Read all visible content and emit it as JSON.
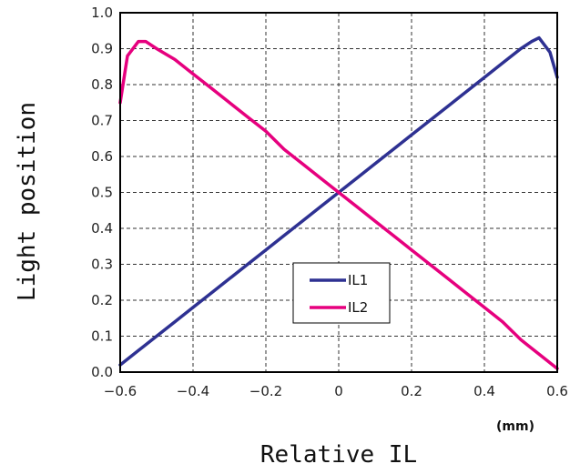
{
  "chart_data": {
    "type": "line",
    "title": "",
    "xlabel": "Relative IL",
    "ylabel": "Light position",
    "x_unit": "(mm)",
    "xlim": [
      -0.6,
      0.6
    ],
    "ylim": [
      0.0,
      1.0
    ],
    "x_ticks": [
      "-0.6",
      "-0.4",
      "-0.2",
      "0",
      "0.2",
      "0.4",
      "0.6"
    ],
    "y_ticks": [
      "0.0",
      "0.1",
      "0.2",
      "0.3",
      "0.4",
      "0.5",
      "0.6",
      "0.7",
      "0.8",
      "0.9",
      "1.0"
    ],
    "grid": "dashed",
    "legend_position": "lower-center",
    "series": [
      {
        "name": "IL1",
        "color": "#2e3192",
        "x": [
          -0.6,
          -0.55,
          -0.5,
          -0.45,
          -0.4,
          -0.35,
          -0.3,
          -0.25,
          -0.2,
          -0.15,
          -0.1,
          -0.05,
          0.0,
          0.05,
          0.1,
          0.15,
          0.2,
          0.25,
          0.3,
          0.35,
          0.4,
          0.45,
          0.5,
          0.53,
          0.55,
          0.58,
          0.6
        ],
        "y": [
          0.02,
          0.06,
          0.1,
          0.14,
          0.18,
          0.22,
          0.26,
          0.3,
          0.34,
          0.38,
          0.42,
          0.46,
          0.5,
          0.54,
          0.58,
          0.62,
          0.66,
          0.7,
          0.74,
          0.78,
          0.82,
          0.86,
          0.9,
          0.92,
          0.93,
          0.89,
          0.82
        ]
      },
      {
        "name": "IL2",
        "color": "#e6007e",
        "x": [
          -0.6,
          -0.58,
          -0.55,
          -0.53,
          -0.5,
          -0.45,
          -0.4,
          -0.35,
          -0.3,
          -0.25,
          -0.2,
          -0.15,
          -0.1,
          -0.05,
          0.0,
          0.05,
          0.1,
          0.15,
          0.2,
          0.25,
          0.3,
          0.35,
          0.4,
          0.45,
          0.5,
          0.55,
          0.6
        ],
        "y": [
          0.75,
          0.88,
          0.92,
          0.92,
          0.9,
          0.87,
          0.83,
          0.79,
          0.75,
          0.71,
          0.67,
          0.62,
          0.58,
          0.54,
          0.5,
          0.46,
          0.42,
          0.38,
          0.34,
          0.3,
          0.26,
          0.22,
          0.18,
          0.14,
          0.09,
          0.05,
          0.01
        ]
      }
    ]
  }
}
